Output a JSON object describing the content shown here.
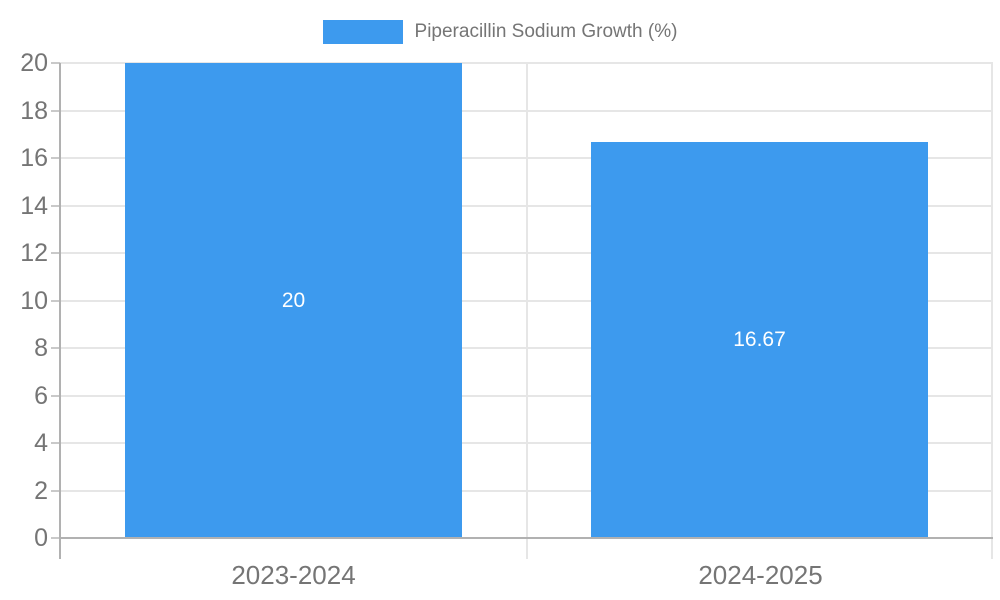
{
  "chart_data": {
    "type": "bar",
    "title": "",
    "legend": {
      "label": "Piperacillin Sodium Growth (%)",
      "position": "top"
    },
    "categories": [
      "2023-2024",
      "2024-2025"
    ],
    "series": [
      {
        "name": "Piperacillin Sodium Growth (%)",
        "values": [
          20,
          16.67
        ]
      }
    ],
    "value_labels": [
      "20",
      "16.67"
    ],
    "xlabel": "",
    "ylabel": "",
    "ylim": [
      0,
      20
    ],
    "yticks": [
      0,
      2,
      4,
      6,
      8,
      10,
      12,
      14,
      16,
      18,
      20
    ],
    "grid": true
  },
  "colors": {
    "bar": "#3D9AEE",
    "axis_text": "#757575",
    "grid_line": "#e6e6e6",
    "axis_line": "#b1b1b1",
    "tick_line": "#c9c9c9",
    "data_label": "#ffffff",
    "background": "#ffffff"
  }
}
